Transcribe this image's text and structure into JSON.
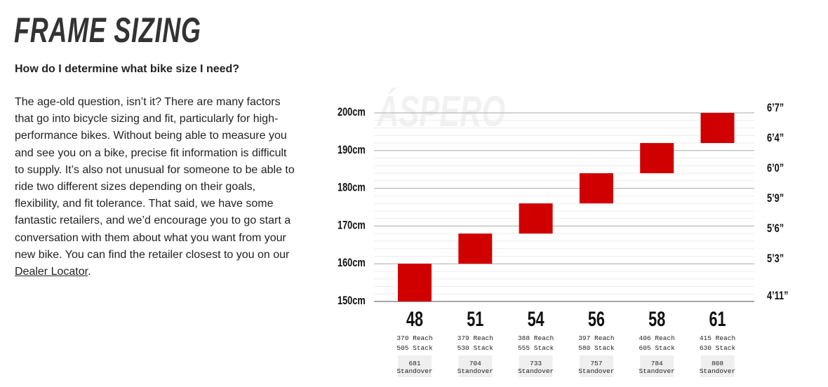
{
  "title": "FRAME SIZING",
  "question": "How do I determine what bike size I need?",
  "body_text": "The age-old question, isn’t it? There are many factors that go into bicycle sizing and fit, particularly for high-performance bikes. Without being able to measure you and see you on a bike, precise fit information is difficult to supply. It’s also not unusual for someone to be able to ride two different sizes depending on their goals, flexibility, and fit tolerance. That said, we have some fantastic retailers, and we’d encourage you to go start a conversation with them about what you want from your new bike. You can find the retailer closest to you on our ",
  "link_text": "Dealer Locator",
  "body_end": ".",
  "chart_data": {
    "type": "range-bar",
    "watermark": "ÁSPERO",
    "ylim": [
      150,
      200
    ],
    "y_ticks": [
      "150cm",
      "160cm",
      "170cm",
      "180cm",
      "190cm",
      "200cm"
    ],
    "y_right_ticks": [
      {
        "label": "4’11”",
        "cm": 150
      },
      {
        "label": "5’3”",
        "cm": 160
      },
      {
        "label": "5’6”",
        "cm": 168
      },
      {
        "label": "5’9”",
        "cm": 176
      },
      {
        "label": "6’0”",
        "cm": 184
      },
      {
        "label": "6’4”",
        "cm": 192
      },
      {
        "label": "6’7”",
        "cm": 200
      }
    ],
    "bar_color": "#d10000",
    "sizes": [
      {
        "size": "48",
        "min": 150,
        "max": 160,
        "reach": "370 Reach",
        "stack": "505 Stack",
        "standover": "681",
        "standover_label": "Standover"
      },
      {
        "size": "51",
        "min": 160,
        "max": 168,
        "reach": "379 Reach",
        "stack": "530 Stack",
        "standover": "704",
        "standover_label": "Standover"
      },
      {
        "size": "54",
        "min": 168,
        "max": 176,
        "reach": "388 Reach",
        "stack": "555 Stack",
        "standover": "733",
        "standover_label": "Standover"
      },
      {
        "size": "56",
        "min": 176,
        "max": 184,
        "reach": "397 Reach",
        "stack": "580 Stack",
        "standover": "757",
        "standover_label": "Standover"
      },
      {
        "size": "58",
        "min": 184,
        "max": 192,
        "reach": "406 Reach",
        "stack": "605 Stack",
        "standover": "784",
        "standover_label": "Standover"
      },
      {
        "size": "61",
        "min": 192,
        "max": 200,
        "reach": "415 Reach",
        "stack": "630 Stack",
        "standover": "808",
        "standover_label": "Standover"
      }
    ]
  }
}
